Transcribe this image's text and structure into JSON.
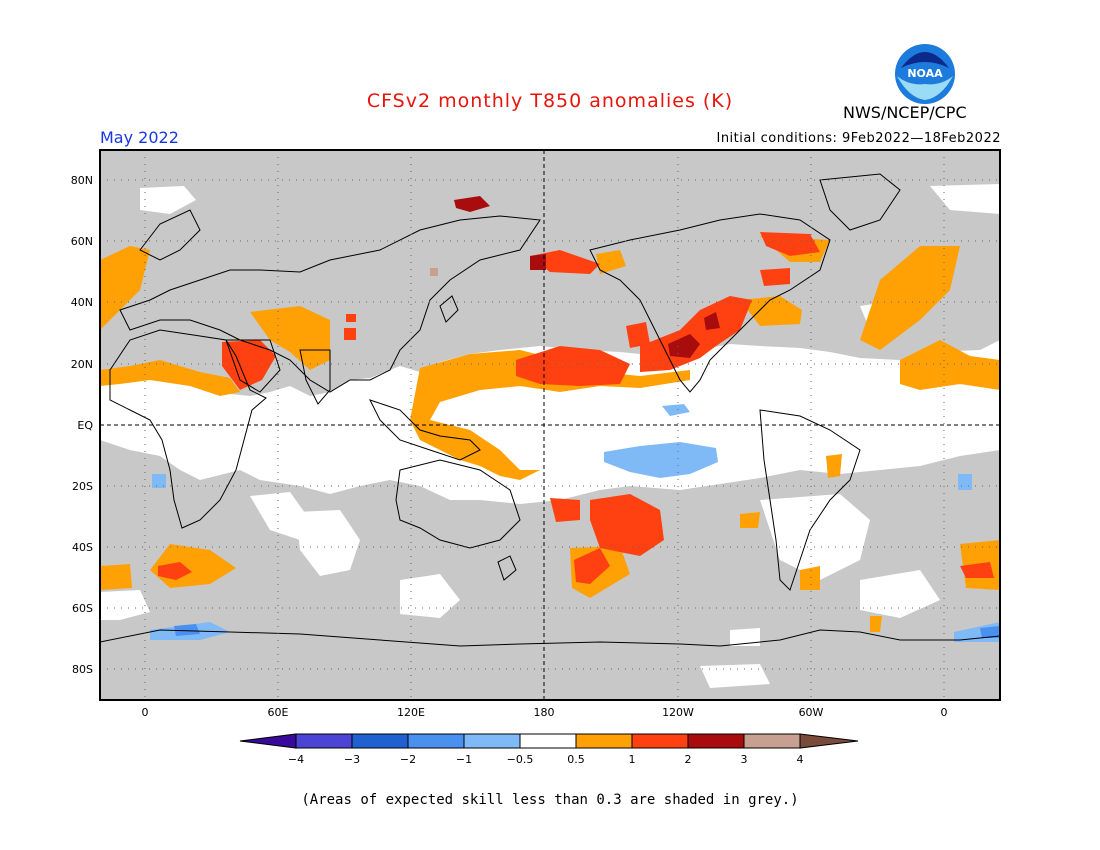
{
  "header": {
    "title": "CFSv2 monthly T850 anomalies (K)",
    "agency": "NWS/NCEP/CPC",
    "month": "May 2022",
    "initial_conditions": "Initial conditions: 9Feb2022—18Feb2022",
    "logo_text": "NOAA"
  },
  "map": {
    "lat_labels": [
      "80N",
      "60N",
      "40N",
      "20N",
      "EQ",
      "20S",
      "40S",
      "60S",
      "80S"
    ],
    "lon_labels": [
      "0",
      "60E",
      "120E",
      "180",
      "120W",
      "60W",
      "0"
    ],
    "mask_color": "#c8c8c8",
    "ocean_color": "#ffffff"
  },
  "colorbar": {
    "ticks": [
      "−4",
      "−3",
      "−2",
      "−1",
      "−0.5",
      "0.5",
      "1",
      "2",
      "3",
      "4"
    ],
    "colors": [
      "#3a0a9a",
      "#4b44d4",
      "#2060d0",
      "#4a90ee",
      "#80baf6",
      "#ffffff",
      "#ffa004",
      "#ff4010",
      "#a80c0c",
      "#c8a092",
      "#7a4a3a"
    ]
  },
  "footnote": "(Areas of expected skill less than 0.3 are shaded in grey.)"
}
